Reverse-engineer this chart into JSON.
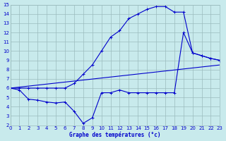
{
  "xlabel": "Graphe des températures (°c)",
  "xlim": [
    0,
    23
  ],
  "ylim": [
    2,
    15
  ],
  "xticks": [
    0,
    1,
    2,
    3,
    4,
    5,
    6,
    7,
    8,
    9,
    10,
    11,
    12,
    13,
    14,
    15,
    16,
    17,
    18,
    19,
    20,
    21,
    22,
    23
  ],
  "yticks": [
    2,
    3,
    4,
    5,
    6,
    7,
    8,
    9,
    10,
    11,
    12,
    13,
    14,
    15
  ],
  "background_color": "#c8eaec",
  "grid_color": "#9bbcbe",
  "line_color": "#0000cc",
  "line1_x": [
    0,
    1,
    2,
    3,
    4,
    5,
    6,
    7,
    8,
    9,
    10,
    11,
    12,
    13,
    14,
    15,
    16,
    17,
    18,
    19,
    20,
    21,
    22,
    23
  ],
  "line1_y": [
    6.0,
    5.8,
    4.8,
    4.7,
    4.5,
    4.4,
    4.5,
    3.5,
    2.2,
    2.8,
    5.5,
    5.5,
    5.8,
    5.5,
    5.5,
    5.5,
    5.5,
    5.5,
    5.5,
    12.0,
    9.8,
    9.5,
    9.2,
    9.0
  ],
  "line2_x": [
    0,
    1,
    2,
    3,
    4,
    5,
    6,
    7,
    8,
    9,
    10,
    11,
    12,
    13,
    14,
    15,
    16,
    17,
    18,
    19,
    20,
    21,
    22,
    23
  ],
  "line2_y": [
    6.0,
    6.0,
    6.0,
    6.0,
    6.0,
    6.0,
    6.0,
    6.5,
    7.5,
    8.5,
    10.0,
    11.5,
    12.2,
    13.5,
    14.0,
    14.5,
    14.8,
    14.8,
    14.2,
    14.2,
    9.8,
    9.5,
    9.2,
    9.0
  ],
  "line3_x": [
    0,
    23
  ],
  "line3_y": [
    6.0,
    8.5
  ],
  "line1_markers": true,
  "line2_markers": true,
  "line3_markers": false
}
